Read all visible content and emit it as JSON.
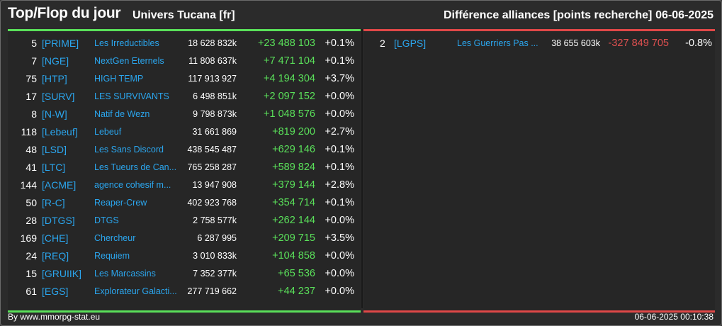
{
  "header": {
    "title": "Top/Flop du jour",
    "universe": "Univers Tucana [fr]",
    "metric": "Différence alliances [points recherche]",
    "date": "06-06-2025"
  },
  "colors": {
    "positive": "#5ae05a",
    "negative": "#e05050",
    "link": "#2ba6ee"
  },
  "top": [
    {
      "rank": "5",
      "tag": "[PRIME]",
      "name": "Les Irreductibles",
      "total": "18 628 832k",
      "diff": "+23 488 103",
      "pct": "+0.1%"
    },
    {
      "rank": "7",
      "tag": "[NGE]",
      "name": "NextGen Eternels",
      "total": "11 808 637k",
      "diff": "+7 471 104",
      "pct": "+0.1%"
    },
    {
      "rank": "75",
      "tag": "[HTP]",
      "name": "HIGH TEMP",
      "total": "117 913 927",
      "diff": "+4 194 304",
      "pct": "+3.7%"
    },
    {
      "rank": "17",
      "tag": "[SURV]",
      "name": "LES SURVIVANTS",
      "total": "6 498 851k",
      "diff": "+2 097 152",
      "pct": "+0.0%"
    },
    {
      "rank": "8",
      "tag": "[N-W]",
      "name": "Natif de Wezn",
      "total": "9 798 873k",
      "diff": "+1 048 576",
      "pct": "+0.0%"
    },
    {
      "rank": "118",
      "tag": "[Lebeuf]",
      "name": "Lebeuf",
      "total": "31 661 869",
      "diff": "+819 200",
      "pct": "+2.7%"
    },
    {
      "rank": "48",
      "tag": "[LSD]",
      "name": "Les Sans Discord",
      "total": "438 545 487",
      "diff": "+629 146",
      "pct": "+0.1%"
    },
    {
      "rank": "41",
      "tag": "[LTC]",
      "name": "Les Tueurs de Can...",
      "total": "765 258 287",
      "diff": "+589 824",
      "pct": "+0.1%"
    },
    {
      "rank": "144",
      "tag": "[ACME]",
      "name": "agence cohesif m...",
      "total": "13 947 908",
      "diff": "+379 144",
      "pct": "+2.8%"
    },
    {
      "rank": "50",
      "tag": "[R-C]",
      "name": "Reaper-Crew",
      "total": "402 923 768",
      "diff": "+354 714",
      "pct": "+0.1%"
    },
    {
      "rank": "28",
      "tag": "[DTGS]",
      "name": "DTGS",
      "total": "2 758 577k",
      "diff": "+262 144",
      "pct": "+0.0%"
    },
    {
      "rank": "169",
      "tag": "[CHE]",
      "name": "Chercheur",
      "total": "6 287 995",
      "diff": "+209 715",
      "pct": "+3.5%"
    },
    {
      "rank": "24",
      "tag": "[REQ]",
      "name": "Requiem",
      "total": "3 010 833k",
      "diff": "+104 858",
      "pct": "+0.0%"
    },
    {
      "rank": "15",
      "tag": "[GRUIIK]",
      "name": "Les Marcassins",
      "total": "7 352 377k",
      "diff": "+65 536",
      "pct": "+0.0%"
    },
    {
      "rank": "61",
      "tag": "[EGS]",
      "name": "Explorateur Galacti...",
      "total": "277 719 662",
      "diff": "+44 237",
      "pct": "+0.0%"
    }
  ],
  "flop": [
    {
      "rank": "2",
      "tag": "[LGPS]",
      "name": "Les Guerriers Pas ...",
      "total": "38 655 603k",
      "diff": "-327 849 705",
      "pct": "-0.8%"
    }
  ],
  "footer": {
    "source": "By www.mmorpg-stat.eu",
    "timestamp": "06-06-2025 00:10:38"
  }
}
